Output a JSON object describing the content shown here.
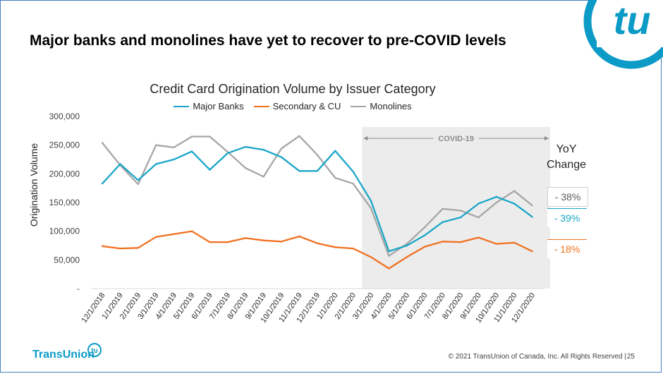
{
  "slide": {
    "title": "Major banks and monolines have yet to recover to pre-COVID levels",
    "logo_text": "TransUnion",
    "brand_mark": "tu",
    "copyright": "© 2021 TransUnion of Canada, Inc.  All Rights Reserved |",
    "page_number": "25"
  },
  "yoy": {
    "title_line1": "YoY",
    "title_line2": "Change",
    "monolines": "- 38%",
    "major_banks": "- 39%",
    "secondary_cu": "- 18%"
  },
  "colors": {
    "major_banks": "#1aa6c8",
    "secondary_cu": "#f07020",
    "monolines": "#a6a6a6",
    "covid_shade": "#ececec",
    "brand": "#0b9bc6"
  },
  "chart_data": {
    "type": "line",
    "title": "Credit Card Origination Volume by Issuer Category",
    "xlabel": "",
    "ylabel": "Origination Volume",
    "ylim": [
      0,
      300000
    ],
    "yticks": [
      "-",
      "50,000",
      "100,000",
      "150,000",
      "200,000",
      "250,000",
      "300,000"
    ],
    "ytick_values": [
      0,
      50000,
      100000,
      150000,
      200000,
      250000,
      300000
    ],
    "legend_position": "top",
    "grid": false,
    "annotation": {
      "label": "COVID-19",
      "from": "3/1/2020",
      "to": "12/1/2020"
    },
    "categories": [
      "12/1/2018",
      "1/1/2019",
      "2/1/2019",
      "3/1/2019",
      "4/1/2019",
      "5/1/2019",
      "6/1/2019",
      "7/1/2019",
      "8/1/2019",
      "9/1/2019",
      "10/1/2019",
      "11/1/2019",
      "12/1/2019",
      "1/1/2020",
      "2/1/2020",
      "3/1/2020",
      "4/1/2020",
      "5/1/2020",
      "6/1/2020",
      "7/1/2020",
      "8/1/2020",
      "9/1/2020",
      "10/1/2020",
      "11/1/2020",
      "12/1/2020"
    ],
    "series": [
      {
        "name": "Major Banks",
        "values": [
          183000,
          217000,
          189000,
          217000,
          225000,
          239000,
          207000,
          236000,
          247000,
          242000,
          229000,
          205000,
          205000,
          240000,
          204000,
          153000,
          65000,
          75000,
          93000,
          116000,
          124000,
          148000,
          160000,
          148000,
          125000
        ]
      },
      {
        "name": "Secondary & CU",
        "values": [
          74000,
          70000,
          71000,
          90000,
          95000,
          100000,
          81000,
          81000,
          88000,
          84000,
          82000,
          91000,
          79000,
          72000,
          70000,
          55000,
          35000,
          55000,
          73000,
          82000,
          81000,
          89000,
          78000,
          80000,
          65000
        ]
      },
      {
        "name": "Monolines",
        "values": [
          254000,
          215000,
          182000,
          250000,
          246000,
          265000,
          265000,
          238000,
          210000,
          195000,
          244000,
          266000,
          233000,
          193000,
          183000,
          140000,
          57000,
          78000,
          107000,
          139000,
          136000,
          124000,
          150000,
          170000,
          145000
        ]
      }
    ]
  }
}
